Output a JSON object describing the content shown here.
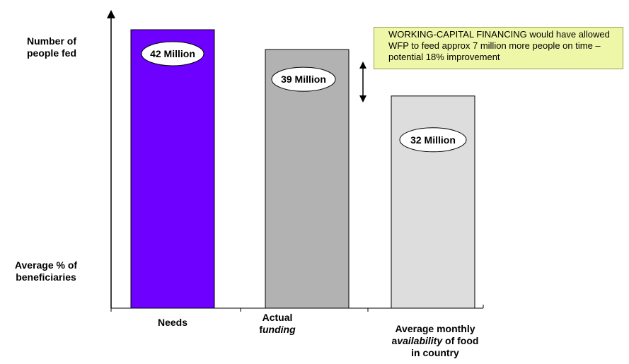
{
  "chart_data": {
    "type": "bar",
    "categories": [
      "Needs",
      "Actual funding",
      "Average monthly availability of food in country"
    ],
    "values": [
      42,
      39,
      32
    ],
    "unit": "Million",
    "value_labels": [
      "42 Million",
      "39 Million",
      "32 Million"
    ],
    "colors": [
      "#6d00ff",
      "#b2b2b2",
      "#dddddd"
    ],
    "y_labels": {
      "top": [
        "Number of",
        "people fed"
      ],
      "bottom": [
        "Average % of",
        "beneficiaries"
      ]
    },
    "x_labels": {
      "needs": "Needs",
      "funding_line1": "Actual",
      "funding_prefix": "f",
      "funding_italic": "unding",
      "avail_line1": "Average monthly",
      "avail_prefix": "a",
      "avail_italic": "vailability",
      "avail_rest": " of food",
      "avail_line3": "in country"
    },
    "annotation": {
      "text": "WORKING-CAPITAL FINANCING would have allowed WFP to feed approx 7 million more people on time – potential 18% improvement"
    }
  }
}
